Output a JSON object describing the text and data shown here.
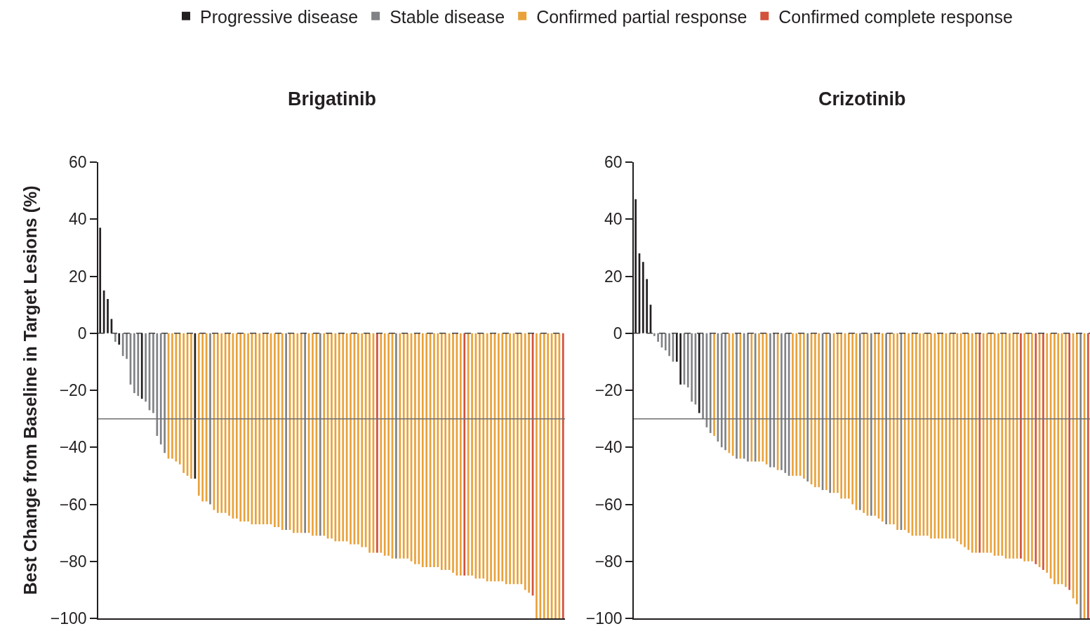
{
  "chart_data": [
    {
      "type": "bar",
      "title": "Brigatinib",
      "ylabel": "Best Change from Baseline in Target Lesions (%)",
      "legend": "top",
      "tick_labels": "y",
      "ylim": [
        -100,
        60
      ],
      "yticks": [
        -100,
        -80,
        -60,
        -40,
        -20,
        0,
        20,
        40,
        60
      ],
      "ref_lines": [
        {
          "axis": "y",
          "value": 0,
          "color": "#414042",
          "line_style": "dashed"
        },
        {
          "axis": "y",
          "value": -30,
          "color": "#6d6e71",
          "line_style": "solid"
        }
      ],
      "categories": [
        null,
        null,
        null,
        null,
        null,
        null,
        null,
        null,
        null,
        null,
        null,
        null,
        null,
        null,
        null,
        null,
        null,
        null,
        null,
        null,
        null,
        null,
        null,
        null,
        null,
        null,
        null,
        null,
        null,
        null,
        null,
        null,
        null,
        null,
        null,
        null,
        null,
        null,
        null,
        null,
        null,
        null,
        null,
        null,
        null,
        null,
        null,
        null,
        null,
        null,
        null,
        null,
        null,
        null,
        null,
        null,
        null,
        null,
        null,
        null,
        null,
        null,
        null,
        null,
        null,
        null,
        null,
        null,
        null,
        null,
        null,
        null,
        null,
        null,
        null,
        null,
        null,
        null,
        null,
        null,
        null,
        null,
        null,
        null,
        null,
        null,
        null,
        null,
        null,
        null,
        null,
        null,
        null,
        null,
        null,
        null,
        null,
        null,
        null,
        null,
        null,
        null,
        null,
        null,
        null,
        null,
        null,
        null,
        null,
        null,
        null,
        null,
        null,
        null,
        null,
        null,
        null,
        null,
        null,
        null,
        null,
        null,
        null
      ],
      "series": [
        {
          "name": "Progressive disease",
          "color": "#231f20",
          "values": [
            37,
            15,
            12,
            5,
            null,
            -4,
            null,
            null,
            null,
            null,
            null,
            -23,
            null,
            null,
            null,
            null,
            null,
            null,
            null,
            null,
            null,
            null,
            null,
            null,
            null,
            -51,
            null,
            null,
            null,
            null,
            null,
            null,
            null,
            null,
            null,
            null,
            null,
            null,
            null,
            null,
            null,
            null,
            null,
            null,
            null,
            null,
            null,
            null,
            null,
            null,
            null,
            null,
            null,
            null,
            null,
            null,
            null,
            null,
            null,
            null,
            null,
            null,
            null,
            null,
            null,
            null,
            null,
            null,
            null,
            null,
            null,
            null,
            null,
            null,
            null,
            null,
            null,
            null,
            null,
            null,
            null,
            null,
            null,
            null,
            null,
            null,
            null,
            null,
            null,
            null,
            null,
            null,
            null,
            null,
            null,
            null,
            null,
            null,
            null,
            null,
            null,
            null,
            null,
            null,
            null,
            null,
            null,
            null,
            null,
            null,
            null,
            null,
            null,
            null,
            null,
            null,
            null,
            null,
            null,
            null,
            null,
            null,
            null
          ]
        },
        {
          "name": "Stable disease",
          "color": "#808285",
          "values": [
            null,
            null,
            null,
            null,
            -3,
            null,
            -8,
            -9,
            -18,
            -21,
            -22,
            null,
            -24,
            -27,
            -28,
            -36,
            -39,
            -42,
            null,
            null,
            null,
            null,
            null,
            null,
            null,
            null,
            null,
            null,
            null,
            -60,
            null,
            null,
            null,
            null,
            null,
            null,
            null,
            null,
            null,
            null,
            null,
            null,
            null,
            null,
            null,
            null,
            null,
            null,
            null,
            -69,
            null,
            null,
            null,
            null,
            -70,
            null,
            null,
            null,
            -71,
            null,
            null,
            null,
            null,
            null,
            null,
            null,
            null,
            null,
            null,
            null,
            null,
            null,
            null,
            null,
            null,
            null,
            null,
            null,
            -79,
            null,
            null,
            null,
            null,
            null,
            null,
            null,
            null,
            null,
            null,
            null,
            null,
            null,
            null,
            null,
            null,
            null,
            null,
            null,
            null,
            null,
            null,
            null,
            null,
            null,
            null,
            null,
            null,
            null,
            null,
            null,
            null,
            null,
            null,
            null,
            null,
            null,
            null,
            null,
            null,
            null,
            null,
            null,
            null
          ]
        },
        {
          "name": "Confirmed partial response",
          "color": "#e9a23b",
          "values": [
            null,
            null,
            null,
            null,
            null,
            null,
            null,
            null,
            null,
            null,
            null,
            null,
            null,
            null,
            null,
            null,
            null,
            null,
            -44,
            -44,
            -45,
            -46,
            -49,
            -50,
            -51,
            null,
            -57,
            -59,
            -59,
            null,
            -62,
            -63,
            -63,
            -63,
            -64,
            -65,
            -65,
            -66,
            -66,
            -66,
            -67,
            -67,
            -67,
            -67,
            -67,
            -67,
            -68,
            -68,
            -69,
            null,
            -69,
            -70,
            -70,
            -70,
            null,
            -70,
            -71,
            -71,
            null,
            -71,
            -72,
            -72,
            -73,
            -73,
            -73,
            -73,
            -74,
            -74,
            -74,
            -75,
            -75,
            -77,
            -77,
            null,
            -77,
            -78,
            -78,
            -79,
            null,
            -79,
            -79,
            -79,
            -80,
            -81,
            -81,
            -82,
            -82,
            -82,
            -82,
            -82,
            -83,
            -83,
            -83,
            -84,
            -85,
            -85,
            null,
            -85,
            -85,
            -86,
            -86,
            -86,
            -87,
            -87,
            -87,
            -87,
            -87,
            -88,
            -88,
            -88,
            -88,
            -88,
            -90,
            -91,
            null,
            -100,
            -100,
            -100,
            -100,
            -100,
            -100,
            -100,
            null
          ]
        },
        {
          "name": "Confirmed complete response",
          "color": "#d2523b",
          "values": [
            null,
            null,
            null,
            null,
            null,
            null,
            null,
            null,
            null,
            null,
            null,
            null,
            null,
            null,
            null,
            null,
            null,
            null,
            null,
            null,
            null,
            null,
            null,
            null,
            null,
            null,
            null,
            null,
            null,
            null,
            null,
            null,
            null,
            null,
            null,
            null,
            null,
            null,
            null,
            null,
            null,
            null,
            null,
            null,
            null,
            null,
            null,
            null,
            null,
            null,
            null,
            null,
            null,
            null,
            null,
            null,
            null,
            null,
            null,
            null,
            null,
            null,
            null,
            null,
            null,
            null,
            null,
            null,
            null,
            null,
            null,
            null,
            null,
            -77,
            null,
            null,
            null,
            null,
            null,
            null,
            null,
            null,
            null,
            null,
            null,
            null,
            null,
            null,
            null,
            null,
            null,
            null,
            null,
            null,
            null,
            null,
            -85,
            null,
            null,
            null,
            null,
            null,
            null,
            null,
            null,
            null,
            null,
            null,
            null,
            null,
            null,
            null,
            null,
            null,
            -92,
            null,
            null,
            null,
            null,
            null,
            null,
            null,
            -100
          ]
        }
      ]
    },
    {
      "type": "bar",
      "title": "Crizotinib",
      "tick_labels": "y",
      "ylim": [
        -100,
        60
      ],
      "yticks": [
        -100,
        -80,
        -60,
        -40,
        -20,
        0,
        20,
        40,
        60
      ],
      "ref_lines": [
        {
          "axis": "y",
          "value": 0,
          "color": "#414042",
          "line_style": "dashed"
        },
        {
          "axis": "y",
          "value": -30,
          "color": "#6d6e71",
          "line_style": "solid"
        }
      ],
      "categories": [
        null,
        null,
        null,
        null,
        null,
        null,
        null,
        null,
        null,
        null,
        null,
        null,
        null,
        null,
        null,
        null,
        null,
        null,
        null,
        null,
        null,
        null,
        null,
        null,
        null,
        null,
        null,
        null,
        null,
        null,
        null,
        null,
        null,
        null,
        null,
        null,
        null,
        null,
        null,
        null,
        null,
        null,
        null,
        null,
        null,
        null,
        null,
        null,
        null,
        null,
        null,
        null,
        null,
        null,
        null,
        null,
        null,
        null,
        null,
        null,
        null,
        null,
        null,
        null,
        null,
        null,
        null,
        null,
        null,
        null,
        null,
        null,
        null,
        null,
        null,
        null,
        null,
        null,
        null,
        null,
        null,
        null,
        null,
        null,
        null,
        null,
        null,
        null,
        null,
        null,
        null,
        null,
        null,
        null,
        null,
        null,
        null,
        null,
        null,
        null,
        null,
        null,
        null,
        null,
        null,
        null,
        null,
        null,
        null,
        null,
        null,
        null,
        null,
        null,
        null,
        null,
        null,
        null,
        null,
        null,
        null,
        null
      ],
      "series": [
        {
          "color": "#231f20",
          "values": [
            47,
            28,
            25,
            19,
            10,
            null,
            null,
            null,
            null,
            null,
            null,
            -10,
            -18,
            null,
            null,
            null,
            null,
            -28,
            null,
            null,
            null,
            null,
            null,
            null,
            null,
            null,
            null,
            null,
            null,
            null,
            null,
            null,
            null,
            null,
            null,
            null,
            null,
            null,
            null,
            null,
            null,
            null,
            null,
            null,
            null,
            null,
            null,
            null,
            null,
            null,
            null,
            null,
            null,
            null,
            null,
            null,
            null,
            null,
            null,
            null,
            null,
            null,
            null,
            null,
            null,
            null,
            null,
            null,
            null,
            null,
            null,
            null,
            null,
            null,
            null,
            null,
            null,
            null,
            null,
            null,
            null,
            null,
            null,
            null,
            null,
            null,
            null,
            null,
            null,
            null,
            null,
            null,
            null,
            null,
            null,
            null,
            null,
            null,
            null,
            null,
            null,
            null,
            null,
            null,
            null,
            null,
            null,
            null,
            null,
            null,
            null,
            null,
            null,
            null,
            null,
            null,
            null,
            null,
            null,
            null,
            null,
            null
          ]
        },
        {
          "color": "#808285",
          "values": [
            null,
            null,
            null,
            null,
            null,
            -1,
            -3,
            -5,
            -6,
            -8,
            -10,
            null,
            null,
            -18,
            -19,
            -24,
            -25,
            null,
            -30,
            -33,
            -35,
            null,
            -38,
            -40,
            -41,
            null,
            null,
            -44,
            null,
            -44,
            -45,
            null,
            -45,
            null,
            null,
            null,
            -47,
            -47,
            null,
            -48,
            -49,
            -50,
            null,
            null,
            null,
            null,
            -52,
            null,
            null,
            null,
            -55,
            null,
            -56,
            null,
            null,
            null,
            null,
            null,
            null,
            null,
            -62,
            null,
            null,
            -64,
            null,
            null,
            null,
            -67,
            null,
            null,
            null,
            -69,
            null,
            null,
            null,
            null,
            null,
            null,
            null,
            null,
            null,
            null,
            null,
            null,
            null,
            null,
            null,
            null,
            null,
            null,
            null,
            null,
            null,
            null,
            null,
            null,
            null,
            null,
            null,
            null,
            null,
            null,
            null,
            null,
            null,
            null,
            null,
            null,
            null,
            null,
            null,
            null,
            null,
            null,
            null,
            null,
            null,
            null,
            null,
            -100,
            null,
            null
          ]
        },
        {
          "color": "#e9a23b",
          "values": [
            null,
            null,
            null,
            null,
            null,
            null,
            null,
            null,
            null,
            null,
            null,
            null,
            null,
            null,
            null,
            null,
            null,
            null,
            null,
            null,
            null,
            -36,
            null,
            null,
            null,
            -42,
            -43,
            null,
            -44,
            null,
            null,
            -45,
            null,
            -45,
            -45,
            -46,
            null,
            null,
            -48,
            null,
            null,
            null,
            -50,
            -50,
            -50,
            -51,
            null,
            -53,
            -54,
            -54,
            null,
            -55,
            null,
            -56,
            -56,
            -58,
            -58,
            -58,
            -60,
            -62,
            null,
            -63,
            -64,
            null,
            -64,
            -65,
            -66,
            null,
            -67,
            -67,
            -69,
            null,
            -69,
            -70,
            -71,
            -71,
            -71,
            -71,
            -71,
            -72,
            -72,
            -72,
            -72,
            -72,
            -72,
            -72,
            -73,
            -74,
            -75,
            -76,
            -77,
            -77,
            null,
            -77,
            -77,
            -77,
            -78,
            -78,
            -78,
            -79,
            -79,
            -79,
            -79,
            null,
            -80,
            -80,
            -80,
            null,
            -82,
            null,
            -84,
            -86,
            -88,
            -88,
            -88,
            -89,
            null,
            -93,
            -95,
            null,
            -100,
            null
          ]
        },
        {
          "color": "#d2523b",
          "values": [
            null,
            null,
            null,
            null,
            null,
            null,
            null,
            null,
            null,
            null,
            null,
            null,
            null,
            null,
            null,
            null,
            null,
            null,
            null,
            null,
            null,
            null,
            null,
            null,
            null,
            null,
            null,
            null,
            null,
            null,
            null,
            null,
            null,
            null,
            null,
            null,
            null,
            null,
            null,
            null,
            null,
            null,
            null,
            null,
            null,
            null,
            null,
            null,
            null,
            null,
            null,
            null,
            null,
            null,
            null,
            null,
            null,
            null,
            null,
            null,
            null,
            null,
            null,
            null,
            null,
            null,
            null,
            null,
            null,
            null,
            null,
            null,
            null,
            null,
            null,
            null,
            null,
            null,
            null,
            null,
            null,
            null,
            null,
            null,
            null,
            null,
            null,
            null,
            null,
            null,
            null,
            null,
            -77,
            null,
            null,
            null,
            null,
            null,
            null,
            null,
            null,
            null,
            null,
            -79,
            null,
            null,
            null,
            -81,
            null,
            -83,
            null,
            null,
            null,
            null,
            null,
            null,
            -90,
            null,
            null,
            null,
            null,
            -100
          ]
        }
      ]
    }
  ]
}
